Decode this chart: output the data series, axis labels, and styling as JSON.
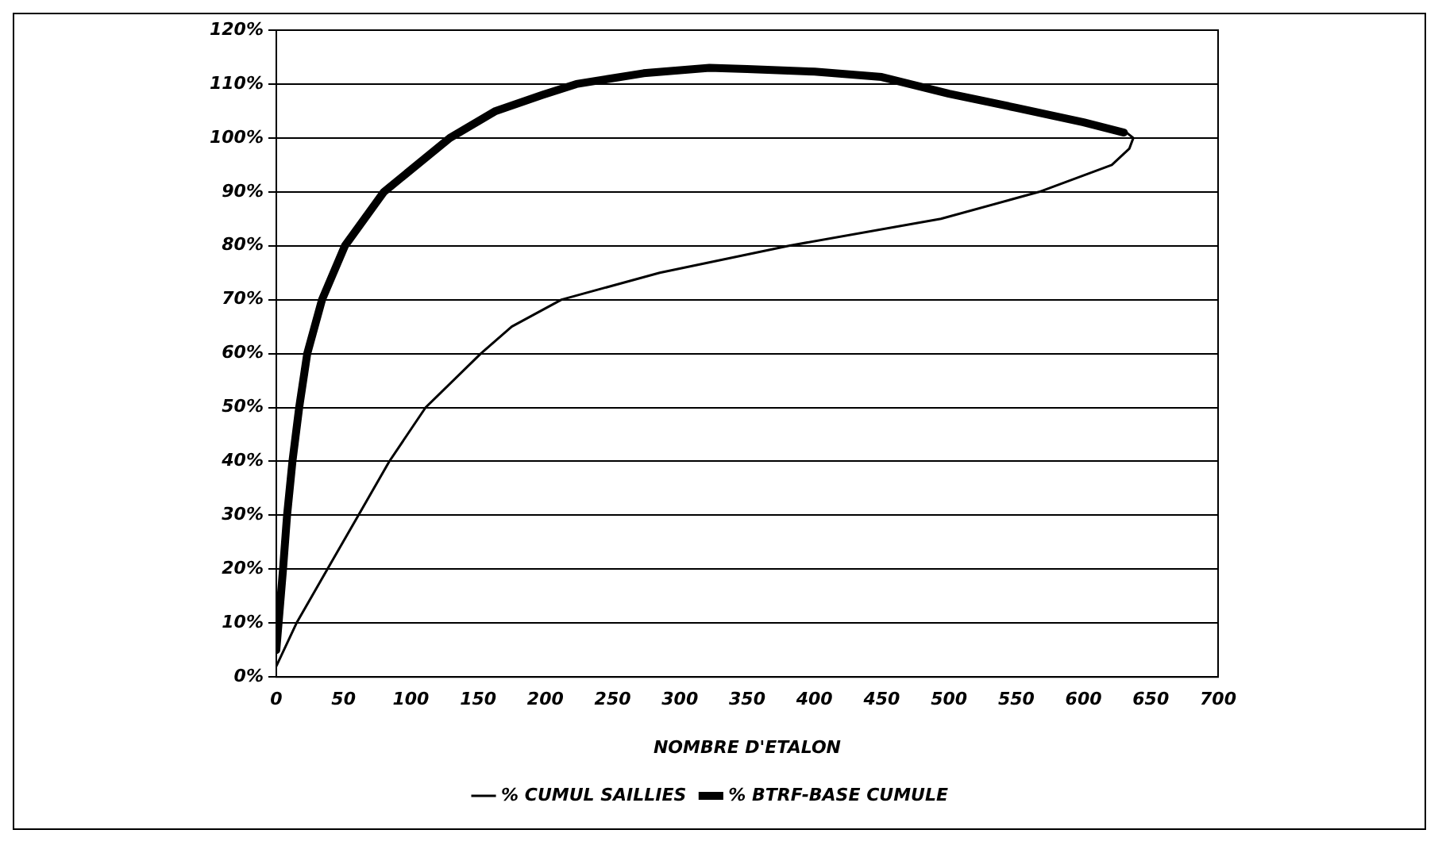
{
  "chart_data": {
    "type": "line",
    "xlabel": "NOMBRE D'ETALON",
    "legend": "bottom",
    "grid": "y",
    "marker": "none",
    "line_style": "solid",
    "xlim": [
      0,
      700
    ],
    "xticks": [
      0,
      50,
      100,
      150,
      200,
      250,
      300,
      350,
      400,
      450,
      500,
      550,
      600,
      650,
      700
    ],
    "ylim": [
      0,
      120
    ],
    "yticks": [
      {
        "value": 0,
        "label": "0%"
      },
      {
        "value": 10,
        "label": "10%"
      },
      {
        "value": 20,
        "label": "20%"
      },
      {
        "value": 30,
        "label": "30%"
      },
      {
        "value": 40,
        "label": "40%"
      },
      {
        "value": 50,
        "label": "50%"
      },
      {
        "value": 60,
        "label": "60%"
      },
      {
        "value": 70,
        "label": "70%"
      },
      {
        "value": 80,
        "label": "80%"
      },
      {
        "value": 90,
        "label": "90%"
      },
      {
        "value": 100,
        "label": "100%"
      },
      {
        "value": 110,
        "label": "110%"
      },
      {
        "value": 120,
        "label": "120%"
      }
    ],
    "series": [
      {
        "name": "% CUMUL SAILLIES",
        "color": "#000000",
        "x": [
          0,
          15,
          38,
          61,
          84,
          111,
          152,
          175,
          212,
          285,
          381,
          494,
          567,
          621,
          634,
          637,
          632
        ],
        "values": [
          2,
          10,
          20,
          30,
          40,
          50,
          60,
          65,
          70,
          75,
          80,
          85,
          90,
          95,
          98,
          100,
          101
        ]
      },
      {
        "name": "% BTRF-BASE CUMULE",
        "color": "#000000",
        "x": [
          0,
          5,
          8,
          12,
          17,
          23,
          34,
          51,
          80,
          129,
          163,
          198,
          223,
          273,
          322,
          350,
          400,
          450,
          500,
          550,
          600,
          630
        ],
        "values": [
          5,
          20,
          30,
          40,
          50,
          60,
          70,
          80,
          90,
          100,
          105,
          108,
          110,
          112,
          113,
          112.8,
          112.3,
          111.3,
          108.2,
          105.6,
          102.9,
          101
        ]
      }
    ]
  }
}
